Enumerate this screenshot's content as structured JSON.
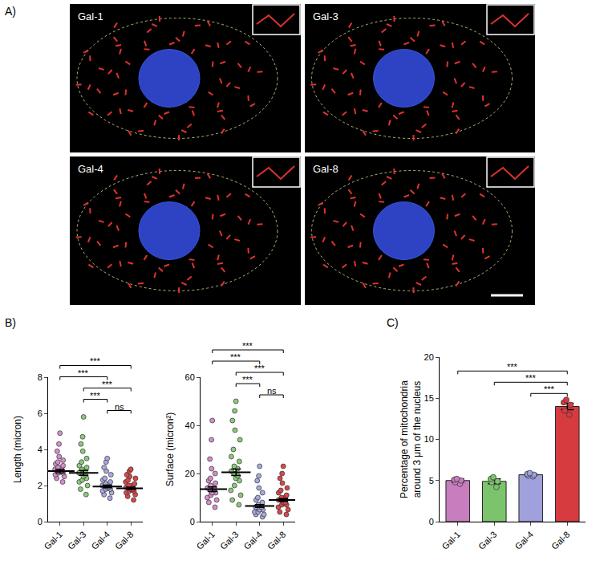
{
  "panel_a": {
    "letter": "A)",
    "type": "image_grid",
    "labels": [
      "Gal-1",
      "Gal-3",
      "Gal-4",
      "Gal-8"
    ]
  },
  "chart_data": [
    {
      "letter": "B)",
      "type": "strip",
      "ylabel": "Length (micron)",
      "categories": [
        "Gal-1",
        "Gal-3",
        "Gal-4",
        "Gal-8"
      ],
      "colors": [
        "#d48fc9",
        "#8cc97a",
        "#a9a9e0",
        "#d9474b"
      ],
      "points": [
        [
          2.2,
          2.4,
          2.5,
          2.6,
          2.7,
          2.7,
          2.8,
          2.8,
          2.9,
          2.9,
          3.0,
          3.0,
          3.1,
          3.2,
          3.3,
          3.4,
          3.6,
          3.9,
          4.3,
          4.9
        ],
        [
          1.5,
          1.8,
          2.0,
          2.2,
          2.3,
          2.4,
          2.5,
          2.6,
          2.7,
          2.7,
          2.8,
          2.9,
          3.0,
          3.1,
          3.3,
          3.5,
          3.9,
          4.3,
          4.7,
          5.8
        ],
        [
          1.3,
          1.5,
          1.6,
          1.7,
          1.8,
          1.8,
          1.9,
          1.9,
          2.0,
          2.0,
          2.1,
          2.1,
          2.2,
          2.3,
          2.4,
          2.6,
          2.8,
          3.0,
          3.3,
          3.5
        ],
        [
          1.2,
          1.4,
          1.5,
          1.6,
          1.7,
          1.7,
          1.8,
          1.8,
          1.9,
          1.9,
          2.0,
          2.0,
          2.1,
          2.2,
          2.3,
          2.4,
          2.5,
          2.6,
          2.8,
          2.9
        ]
      ],
      "means": [
        2.8,
        2.7,
        1.95,
        1.85
      ],
      "sem": [
        0.1,
        0.13,
        0.07,
        0.06
      ],
      "ylim": [
        0,
        8
      ],
      "yticks": [
        0,
        2,
        4,
        6,
        8
      ],
      "grid": false,
      "comparisons": [
        {
          "pair": [
            "Gal-4",
            "Gal-8"
          ],
          "label": "ns"
        },
        {
          "pair": [
            "Gal-3",
            "Gal-4"
          ],
          "label": "***"
        },
        {
          "pair": [
            "Gal-3",
            "Gal-8"
          ],
          "label": "***"
        },
        {
          "pair": [
            "Gal-1",
            "Gal-4"
          ],
          "label": "***"
        },
        {
          "pair": [
            "Gal-1",
            "Gal-8"
          ],
          "label": "***"
        }
      ]
    },
    {
      "type": "strip",
      "ylabel": "Surface (micron²)",
      "categories": [
        "Gal-1",
        "Gal-3",
        "Gal-4",
        "Gal-8"
      ],
      "colors": [
        "#d48fc9",
        "#8cc97a",
        "#a9a9e0",
        "#d9474b"
      ],
      "points": [
        [
          6,
          8,
          9,
          10,
          11,
          12,
          12,
          13,
          13,
          14,
          14,
          15,
          16,
          17,
          18,
          20,
          22,
          26,
          34,
          42
        ],
        [
          7,
          9,
          11,
          13,
          15,
          17,
          18,
          19,
          20,
          21,
          22,
          23,
          25,
          27,
          30,
          34,
          38,
          42,
          46,
          50
        ],
        [
          2,
          3,
          3,
          4,
          4,
          5,
          5,
          6,
          6,
          6,
          7,
          7,
          8,
          9,
          10,
          12,
          14,
          17,
          19,
          23
        ],
        [
          3,
          4,
          5,
          6,
          7,
          7,
          8,
          8,
          9,
          9,
          10,
          10,
          11,
          12,
          13,
          14,
          16,
          18,
          20,
          23
        ]
      ],
      "means": [
        13.5,
        20.5,
        6.5,
        9
      ],
      "sem": [
        0.9,
        1.3,
        0.6,
        0.6
      ],
      "ylim": [
        0,
        60
      ],
      "yticks": [
        0,
        20,
        40,
        60
      ],
      "grid": false,
      "comparisons": [
        {
          "pair": [
            "Gal-4",
            "Gal-8"
          ],
          "label": "ns"
        },
        {
          "pair": [
            "Gal-3",
            "Gal-4"
          ],
          "label": "***"
        },
        {
          "pair": [
            "Gal-3",
            "Gal-8"
          ],
          "label": "***"
        },
        {
          "pair": [
            "Gal-1",
            "Gal-4"
          ],
          "label": "***"
        },
        {
          "pair": [
            "Gal-1",
            "Gal-8"
          ],
          "label": "***"
        }
      ]
    },
    {
      "letter": "C)",
      "type": "bar",
      "ylabel": "Percentage of mitochondria around 3 μm of the nucleus",
      "categories": [
        "Gal-1",
        "Gal-3",
        "Gal-4",
        "Gal-8"
      ],
      "colors": [
        "#c77dbe",
        "#7cc46c",
        "#9fa0dc",
        "#d63b3f"
      ],
      "values": [
        5.0,
        4.9,
        5.7,
        14.0
      ],
      "errors": [
        0.2,
        0.3,
        0.1,
        0.4
      ],
      "points": [
        [
          4.6,
          5.0,
          5.2,
          5.1,
          4.8
        ],
        [
          4.2,
          4.8,
          5.2,
          5.4,
          4.9
        ],
        [
          5.5,
          5.7,
          5.8,
          5.6,
          5.9
        ],
        [
          13.0,
          14.2,
          14.8,
          14.5,
          13.5
        ]
      ],
      "ylim": [
        0,
        20
      ],
      "yticks": [
        0,
        5,
        10,
        15,
        20
      ],
      "grid": false,
      "comparisons": [
        {
          "pair": [
            "Gal-4",
            "Gal-8"
          ],
          "label": "***"
        },
        {
          "pair": [
            "Gal-3",
            "Gal-8"
          ],
          "label": "***"
        },
        {
          "pair": [
            "Gal-1",
            "Gal-8"
          ],
          "label": "***"
        }
      ]
    }
  ]
}
